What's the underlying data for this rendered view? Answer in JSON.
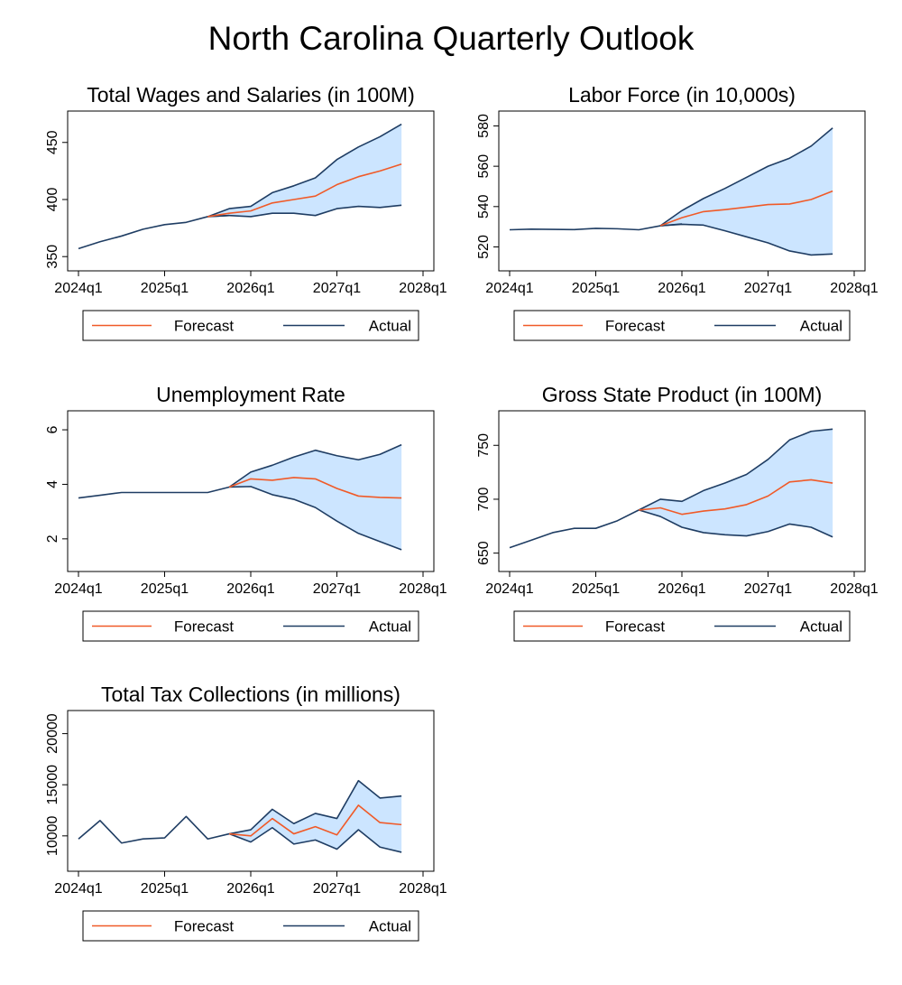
{
  "page": {
    "title": "North Carolina Quarterly Outlook"
  },
  "colors": {
    "forecast": "#f05a28",
    "actual": "#1f3d63",
    "band": "#cce5ff"
  },
  "chart_data": [
    {
      "type": "line",
      "title": "Total Wages and Salaries (in 100M)",
      "xticks": [
        "2024q1",
        "2025q1",
        "2026q1",
        "2027q1",
        "2028q1"
      ],
      "xlim": [
        0,
        16
      ],
      "ylim": [
        347,
        468
      ],
      "yticks": [
        350,
        400,
        450
      ],
      "legend": [
        "Forecast",
        "Actual"
      ],
      "actual_x": [
        0,
        1,
        2,
        3,
        4,
        5,
        6,
        7
      ],
      "actual": [
        357,
        363,
        368,
        374,
        378,
        380,
        385,
        386
      ],
      "band_x": [
        6,
        7,
        8,
        9,
        10,
        11,
        12,
        13,
        14,
        15
      ],
      "forecast": [
        385,
        388,
        390,
        397,
        400,
        403,
        413,
        420,
        425,
        431
      ],
      "upper": [
        385,
        392,
        394,
        406,
        412,
        419,
        435,
        446,
        455,
        466
      ],
      "lower": [
        385,
        386,
        385,
        388,
        388,
        386,
        392,
        394,
        393,
        395
      ]
    },
    {
      "type": "line",
      "title": "Labor Force (in 10,000s)",
      "xticks": [
        "2024q1",
        "2025q1",
        "2026q1",
        "2027q1",
        "2028q1"
      ],
      "xlim": [
        0,
        16
      ],
      "ylim": [
        513.5,
        582
      ],
      "yticks": [
        520,
        540,
        560,
        580
      ],
      "legend": [
        "Forecast",
        "Actual"
      ],
      "actual_x": [
        0,
        1,
        2,
        3,
        4,
        5,
        6,
        7,
        8
      ],
      "actual": [
        528.5,
        528.8,
        528.7,
        528.6,
        529.2,
        529.0,
        528.5,
        530.5,
        531.4
      ],
      "band_x": [
        7,
        8,
        9,
        10,
        11,
        12,
        13,
        14,
        15
      ],
      "forecast": [
        530.5,
        534.5,
        537.5,
        538.5,
        539.7,
        541.0,
        541.3,
        543.5,
        547.7
      ],
      "upper": [
        530.5,
        538,
        544,
        549,
        554.5,
        560,
        564,
        570,
        579
      ],
      "lower": [
        530.5,
        531.2,
        530.8,
        528,
        525,
        522,
        518,
        516,
        516.5
      ]
    },
    {
      "type": "line",
      "title": "Unemployment Rate",
      "xticks": [
        "2024q1",
        "2025q1",
        "2026q1",
        "2027q1",
        "2028q1"
      ],
      "xlim": [
        0,
        16
      ],
      "ylim": [
        1.2,
        6.3
      ],
      "yticks": [
        2,
        4,
        6
      ],
      "legend": [
        "Forecast",
        "Actual"
      ],
      "actual_x": [
        0,
        1,
        2,
        3,
        4,
        5,
        6,
        7
      ],
      "actual": [
        3.5,
        3.6,
        3.7,
        3.7,
        3.7,
        3.7,
        3.7,
        3.9
      ],
      "band_x": [
        7,
        8,
        9,
        10,
        11,
        12,
        13,
        14,
        15
      ],
      "forecast": [
        3.9,
        4.2,
        4.15,
        4.25,
        4.2,
        3.85,
        3.57,
        3.52,
        3.5
      ],
      "upper": [
        3.9,
        4.45,
        4.7,
        5.0,
        5.25,
        5.05,
        4.9,
        5.1,
        5.45
      ],
      "lower": [
        3.9,
        3.92,
        3.62,
        3.45,
        3.15,
        2.65,
        2.2,
        1.9,
        1.6
      ]
    },
    {
      "type": "line",
      "title": "Gross State Product (in 100M)",
      "xticks": [
        "2024q1",
        "2025q1",
        "2026q1",
        "2027q1",
        "2028q1"
      ],
      "xlim": [
        0,
        16
      ],
      "ylim": [
        643,
        772
      ],
      "yticks": [
        650,
        700,
        750
      ],
      "legend": [
        "Forecast",
        "Actual"
      ],
      "actual_x": [
        0,
        1,
        2,
        3,
        4,
        5,
        6
      ],
      "actual": [
        655,
        662,
        669,
        673,
        673,
        680,
        690
      ],
      "band_x": [
        6,
        7,
        8,
        9,
        10,
        11,
        12,
        13,
        14,
        15
      ],
      "forecast": [
        690,
        692,
        686,
        689,
        691,
        695,
        703,
        716,
        718,
        715
      ],
      "upper": [
        690,
        700,
        698,
        708,
        715,
        723,
        737,
        755,
        763,
        765
      ],
      "lower": [
        690,
        684,
        674,
        669,
        667,
        666,
        670,
        677,
        674,
        665
      ]
    },
    {
      "type": "line",
      "title": "Total Tax Collections (in millions)",
      "xticks": [
        "2024q1",
        "2025q1",
        "2026q1",
        "2027q1",
        "2028q1"
      ],
      "xlim": [
        0,
        16
      ],
      "ylim": [
        7600,
        21200
      ],
      "yticks": [
        10000,
        15000,
        20000
      ],
      "legend": [
        "Forecast",
        "Actual"
      ],
      "actual_x": [
        0,
        1,
        2,
        3,
        4,
        5,
        6,
        7
      ],
      "actual": [
        9700,
        11500,
        9300,
        9700,
        9800,
        11900,
        9700,
        10200
      ],
      "band_x": [
        7,
        8,
        9,
        10,
        11,
        12,
        13,
        14,
        15
      ],
      "forecast": [
        10200,
        10000,
        11700,
        10200,
        10900,
        10100,
        13000,
        11300,
        11100
      ],
      "upper": [
        10200,
        10600,
        12600,
        11200,
        12200,
        11700,
        15400,
        13700,
        13900
      ],
      "lower": [
        10200,
        9400,
        10800,
        9200,
        9600,
        8700,
        10600,
        8900,
        8400
      ]
    }
  ]
}
